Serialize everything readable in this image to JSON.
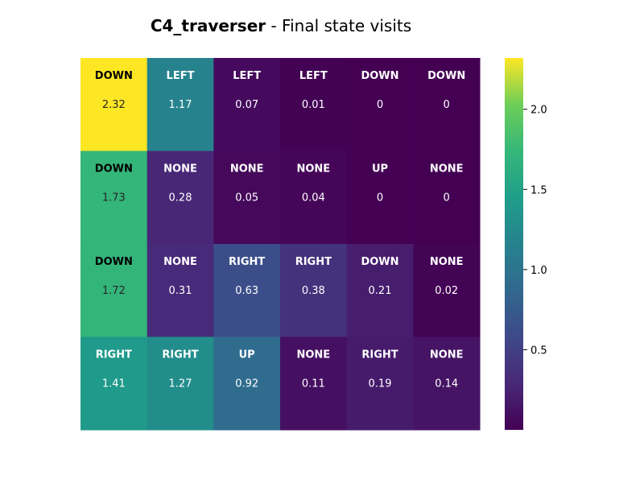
{
  "title": {
    "bold": "C4_traverser",
    "rest": " - Final state visits"
  },
  "colorbar": {
    "colormap": "viridis",
    "ticks": [
      0.5,
      1.0,
      1.5,
      2.0
    ],
    "tick_labels": [
      "0.5",
      "1.0",
      "1.5",
      "2.0"
    ]
  },
  "chart_data": {
    "type": "heatmap",
    "title": "C4_traverser - Final state visits",
    "rows": 4,
    "cols": 6,
    "vmin": 0,
    "vmax": 2.32,
    "values": [
      [
        2.32,
        1.17,
        0.07,
        0.01,
        0,
        0
      ],
      [
        1.73,
        0.28,
        0.05,
        0.04,
        0,
        0
      ],
      [
        1.72,
        0.31,
        0.63,
        0.38,
        0.21,
        0.02
      ],
      [
        1.41,
        1.27,
        0.92,
        0.11,
        0.19,
        0.14
      ]
    ],
    "value_labels": [
      [
        "2.32",
        "1.17",
        "0.07",
        "0.01",
        "0",
        "0"
      ],
      [
        "1.73",
        "0.28",
        "0.05",
        "0.04",
        "0",
        "0"
      ],
      [
        "1.72",
        "0.31",
        "0.63",
        "0.38",
        "0.21",
        "0.02"
      ],
      [
        "1.41",
        "1.27",
        "0.92",
        "0.11",
        "0.19",
        "0.14"
      ]
    ],
    "actions": [
      [
        "DOWN",
        "LEFT",
        "LEFT",
        "LEFT",
        "DOWN",
        "DOWN"
      ],
      [
        "DOWN",
        "NONE",
        "NONE",
        "NONE",
        "UP",
        "NONE"
      ],
      [
        "DOWN",
        "NONE",
        "RIGHT",
        "RIGHT",
        "DOWN",
        "NONE"
      ],
      [
        "RIGHT",
        "RIGHT",
        "UP",
        "NONE",
        "RIGHT",
        "NONE"
      ]
    ]
  }
}
